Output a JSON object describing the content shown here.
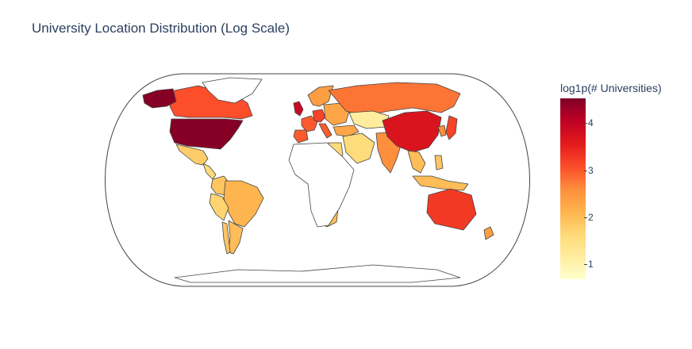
{
  "title": "University Location Distribution (Log Scale)",
  "legend": {
    "title": "log1p(# Universities)",
    "ticks": [
      "1",
      "2",
      "3",
      "4"
    ],
    "tick_values": [
      1,
      2,
      3,
      4
    ],
    "range": [
      0.69,
      4.55
    ],
    "colorscale": [
      "#ffffcc",
      "#ffeda0",
      "#fed976",
      "#feb24c",
      "#fd8d3c",
      "#fc4e2a",
      "#e31a1c",
      "#bd0026",
      "#800026"
    ]
  },
  "regions": [
    {
      "name": "United States",
      "value": 4.5
    },
    {
      "name": "Canada",
      "value": 3.1
    },
    {
      "name": "Alaska (US)",
      "value": 4.5
    },
    {
      "name": "Mexico",
      "value": 1.8
    },
    {
      "name": "Central America",
      "value": 1.6
    },
    {
      "name": "Colombia",
      "value": 1.9
    },
    {
      "name": "Brazil",
      "value": 2.1
    },
    {
      "name": "Peru",
      "value": 1.7
    },
    {
      "name": "Argentina",
      "value": 2.0
    },
    {
      "name": "Chile",
      "value": 1.9
    },
    {
      "name": "United Kingdom",
      "value": 3.9
    },
    {
      "name": "France",
      "value": 3.0
    },
    {
      "name": "Spain",
      "value": 3.0
    },
    {
      "name": "Germany",
      "value": 3.2
    },
    {
      "name": "Italy",
      "value": 3.0
    },
    {
      "name": "Scandinavia",
      "value": 2.4
    },
    {
      "name": "Eastern Europe",
      "value": 2.3
    },
    {
      "name": "Russia",
      "value": 2.8
    },
    {
      "name": "Turkey",
      "value": 2.3
    },
    {
      "name": "Kazakhstan",
      "value": 1.2
    },
    {
      "name": "Middle East",
      "value": 1.6
    },
    {
      "name": "Egypt",
      "value": 1.6
    },
    {
      "name": "India",
      "value": 2.6
    },
    {
      "name": "China",
      "value": 3.7
    },
    {
      "name": "Japan",
      "value": 3.2
    },
    {
      "name": "Korea",
      "value": 2.6
    },
    {
      "name": "Southeast Asia",
      "value": 2.0
    },
    {
      "name": "Indonesia",
      "value": 2.0
    },
    {
      "name": "Philippines",
      "value": 1.9
    },
    {
      "name": "Australia",
      "value": 3.3
    },
    {
      "name": "New Zealand",
      "value": 2.4
    },
    {
      "name": "South Africa",
      "value": 2.0
    },
    {
      "name": "Greenland",
      "value": null
    },
    {
      "name": "Africa",
      "value": null
    },
    {
      "name": "Antarctica",
      "value": null
    }
  ]
}
